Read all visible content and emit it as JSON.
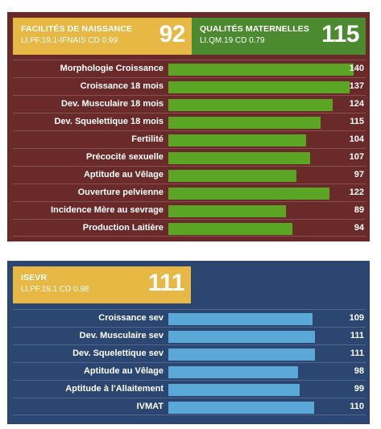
{
  "colors": {
    "panel1_bg": "#6b2a2a",
    "panel2_bg": "#2b4670",
    "header_gold": "#e7b844",
    "header_green": "#4c8a2f",
    "bar_green": "#5aa624",
    "bar_blue": "#5aa8d8"
  },
  "panel1": {
    "header_left": {
      "title": "FACILITÉS DE NAISSANCE",
      "subtitle": "LI.PF.19.1-IFNAIS CD 0.99",
      "value": "92"
    },
    "header_right": {
      "title": "QUALITÉS MATERNELLES",
      "subtitle": "LI.QM.19 CD 0.79",
      "value": "115"
    },
    "scale_max": 140,
    "rows": [
      {
        "label": "Morphologie Croissance",
        "value": 140
      },
      {
        "label": "Croissance 18 mois",
        "value": 137
      },
      {
        "label": "Dev. Musculaire 18 mois",
        "value": 124
      },
      {
        "label": "Dev. Squelettique 18 mois",
        "value": 115
      },
      {
        "label": "Fertilité",
        "value": 104
      },
      {
        "label": "Précocité sexuelle",
        "value": 107
      },
      {
        "label": "Aptitude au Vêlage",
        "value": 97
      },
      {
        "label": "Ouverture pelvienne",
        "value": 122
      },
      {
        "label": "Incidence Mère au sevrage",
        "value": 89
      },
      {
        "label": "Production Laitière",
        "value": 94
      }
    ]
  },
  "panel2": {
    "header": {
      "title": "ISEVR",
      "subtitle": "LI.PF.19.1 CD 0.98",
      "value": "111"
    },
    "scale_max": 140,
    "rows": [
      {
        "label": "Croissance sev",
        "value": 109
      },
      {
        "label": "Dev. Musculaire sev",
        "value": 111
      },
      {
        "label": "Dev. Squelettique sev",
        "value": 111
      },
      {
        "label": "Aptitude au Vêlage",
        "value": 98
      },
      {
        "label": "Aptitude à l'Allaitement",
        "value": 99
      },
      {
        "label": "IVMAT",
        "value": 110
      }
    ]
  }
}
